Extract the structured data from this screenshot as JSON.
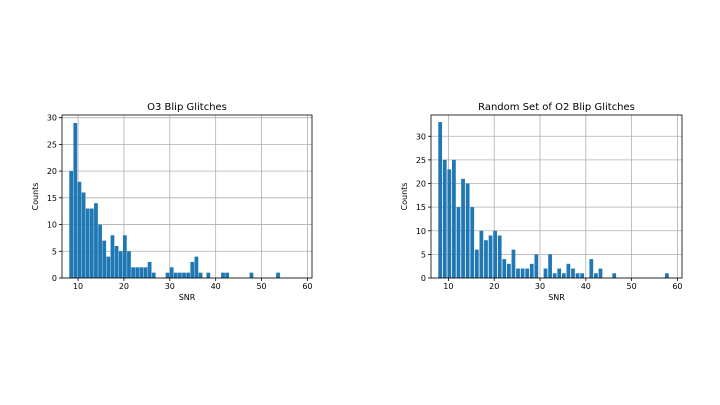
{
  "chart_data": [
    {
      "type": "bar",
      "title": "O3 Blip Glitches",
      "xlabel": "SNR",
      "ylabel": "Counts",
      "xlim": [
        6.5,
        61
      ],
      "ylim": [
        0,
        30.5
      ],
      "xticks": [
        10,
        20,
        30,
        40,
        50,
        60
      ],
      "yticks": [
        0,
        5,
        10,
        15,
        20,
        25,
        30
      ],
      "grid": true,
      "bin_width": 0.82,
      "x": [
        8.5,
        9.4,
        10.3,
        11.2,
        12.1,
        13.0,
        13.9,
        14.8,
        15.7,
        16.6,
        17.5,
        18.4,
        19.3,
        20.2,
        21.1,
        22.0,
        22.9,
        23.8,
        24.7,
        25.6,
        26.5,
        29.5,
        30.4,
        31.3,
        32.2,
        33.1,
        34.0,
        34.9,
        35.8,
        36.7,
        38.4,
        41.6,
        42.5,
        47.8,
        53.6
      ],
      "values": [
        20,
        29,
        18,
        16,
        13,
        13,
        14,
        10,
        7,
        4,
        8,
        6,
        5,
        8,
        5,
        2,
        2,
        2,
        2,
        3,
        1,
        1,
        2,
        1,
        1,
        1,
        1,
        3,
        4,
        1,
        1,
        1,
        1,
        1,
        1
      ]
    },
    {
      "type": "bar",
      "title": "Random Set of O2 Blip Glitches",
      "xlabel": "SNR",
      "ylabel": "Counts",
      "xlim": [
        6.2,
        61
      ],
      "ylim": [
        0,
        34.5
      ],
      "xticks": [
        10,
        20,
        30,
        40,
        50,
        60
      ],
      "yticks": [
        0,
        5,
        10,
        15,
        20,
        25,
        30
      ],
      "grid": true,
      "bin_width": 0.82,
      "x": [
        8.2,
        9.2,
        10.2,
        11.2,
        12.2,
        13.2,
        14.2,
        15.2,
        16.2,
        17.2,
        18.2,
        19.2,
        20.2,
        21.2,
        22.2,
        23.2,
        24.2,
        25.2,
        26.2,
        27.2,
        28.2,
        29.2,
        31.2,
        32.2,
        33.2,
        34.2,
        35.2,
        36.2,
        37.2,
        38.2,
        39.2,
        41.2,
        42.2,
        43.2,
        46.2,
        57.7
      ],
      "values": [
        33,
        25,
        23,
        25,
        15,
        21,
        20,
        15,
        6,
        10,
        8,
        9,
        10,
        9,
        4,
        3,
        6,
        2,
        2,
        2,
        3,
        5,
        2,
        5,
        1,
        2,
        1,
        3,
        2,
        1,
        1,
        4,
        1,
        2,
        1,
        1
      ]
    }
  ]
}
